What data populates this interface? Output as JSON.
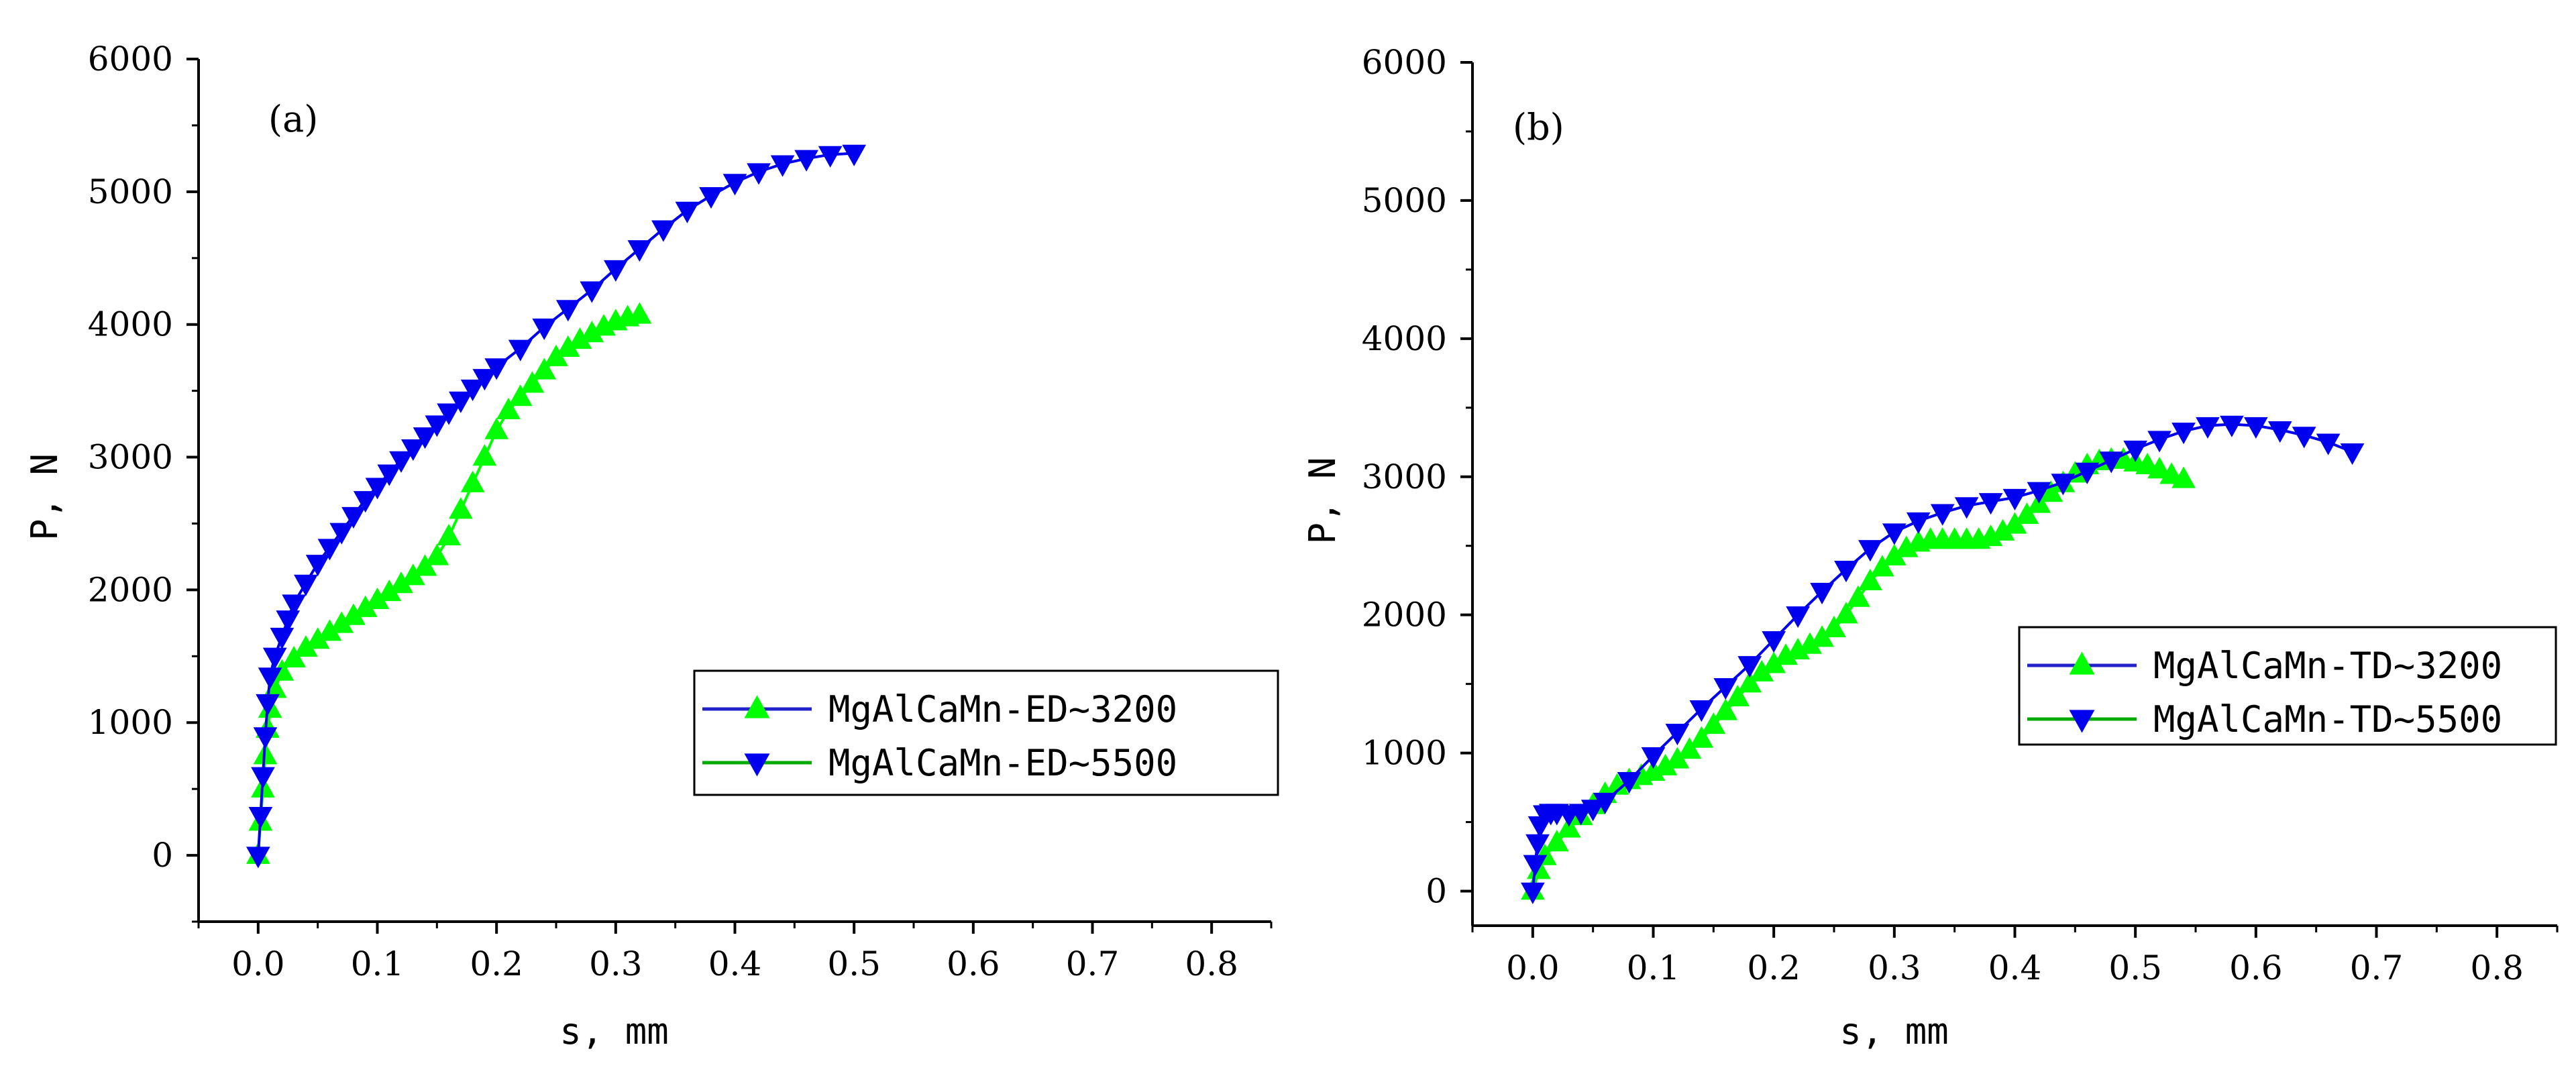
{
  "chart_data": [
    {
      "type": "line",
      "panel_label": "(a)",
      "xlabel": "s,  mm",
      "ylabel": "P,  N",
      "xlim": [
        -0.05,
        0.85
      ],
      "ylim": [
        -500,
        6000
      ],
      "x_ticks": [
        "0.0",
        "0.1",
        "0.2",
        "0.3",
        "0.4",
        "0.5",
        "0.6",
        "0.7",
        "0.8"
      ],
      "y_ticks": [
        "0",
        "1000",
        "2000",
        "3000",
        "4000",
        "5000",
        "6000"
      ],
      "legend_position": "center-right",
      "series": [
        {
          "name": "MgAlCaMn-ED~3200",
          "color": "#00ff00",
          "line_color": "#2222cc",
          "marker": "triangle-up",
          "x": [
            0,
            0.002,
            0.004,
            0.006,
            0.008,
            0.01,
            0.014,
            0.02,
            0.03,
            0.04,
            0.05,
            0.06,
            0.07,
            0.08,
            0.09,
            0.1,
            0.11,
            0.12,
            0.13,
            0.14,
            0.15,
            0.16,
            0.17,
            0.18,
            0.19,
            0.2,
            0.21,
            0.22,
            0.23,
            0.24,
            0.25,
            0.26,
            0.27,
            0.28,
            0.29,
            0.3,
            0.31,
            0.32
          ],
          "y": [
            0,
            250,
            500,
            750,
            950,
            1100,
            1250,
            1380,
            1480,
            1560,
            1620,
            1680,
            1740,
            1800,
            1860,
            1920,
            1980,
            2040,
            2100,
            2170,
            2250,
            2400,
            2600,
            2800,
            3000,
            3200,
            3350,
            3450,
            3550,
            3650,
            3750,
            3820,
            3880,
            3930,
            3980,
            4020,
            4050,
            4070
          ]
        },
        {
          "name": "MgAlCaMn-ED~5500",
          "color": "#0000ee",
          "line_color": "#00aa00",
          "marker": "triangle-down",
          "x": [
            0,
            0.002,
            0.004,
            0.006,
            0.008,
            0.01,
            0.014,
            0.02,
            0.025,
            0.03,
            0.04,
            0.05,
            0.06,
            0.07,
            0.08,
            0.09,
            0.1,
            0.11,
            0.12,
            0.13,
            0.14,
            0.15,
            0.16,
            0.17,
            0.18,
            0.19,
            0.2,
            0.22,
            0.24,
            0.26,
            0.28,
            0.3,
            0.32,
            0.34,
            0.36,
            0.38,
            0.4,
            0.42,
            0.44,
            0.46,
            0.48,
            0.5
          ],
          "y": [
            0,
            300,
            600,
            900,
            1150,
            1350,
            1500,
            1650,
            1780,
            1900,
            2050,
            2200,
            2320,
            2440,
            2560,
            2680,
            2780,
            2880,
            2980,
            3070,
            3160,
            3250,
            3340,
            3430,
            3520,
            3600,
            3680,
            3820,
            3980,
            4120,
            4260,
            4420,
            4570,
            4720,
            4860,
            4970,
            5070,
            5150,
            5210,
            5250,
            5280,
            5290
          ]
        }
      ]
    },
    {
      "type": "line",
      "panel_label": "(b)",
      "xlabel": "s,  mm",
      "ylabel": "P,  N",
      "xlim": [
        -0.05,
        0.85
      ],
      "ylim": [
        -250,
        6000
      ],
      "x_ticks": [
        "0.0",
        "0.1",
        "0.2",
        "0.3",
        "0.4",
        "0.5",
        "0.6",
        "0.7",
        "0.8"
      ],
      "y_ticks": [
        "0",
        "1000",
        "2000",
        "3000",
        "4000",
        "5000",
        "6000"
      ],
      "legend_position": "center-right",
      "series": [
        {
          "name": "MgAlCaMn-TD~3200",
          "color": "#00ff00",
          "line_color": "#2222cc",
          "marker": "triangle-up",
          "x": [
            0,
            0.005,
            0.01,
            0.02,
            0.03,
            0.04,
            0.05,
            0.06,
            0.07,
            0.08,
            0.09,
            0.1,
            0.11,
            0.12,
            0.13,
            0.14,
            0.15,
            0.16,
            0.17,
            0.18,
            0.19,
            0.2,
            0.21,
            0.22,
            0.23,
            0.24,
            0.25,
            0.26,
            0.27,
            0.28,
            0.29,
            0.3,
            0.31,
            0.32,
            0.33,
            0.34,
            0.35,
            0.36,
            0.37,
            0.38,
            0.39,
            0.4,
            0.41,
            0.42,
            0.43,
            0.44,
            0.45,
            0.46,
            0.47,
            0.48,
            0.49,
            0.5,
            0.51,
            0.52,
            0.53,
            0.54
          ],
          "y": [
            0,
            150,
            250,
            350,
            450,
            540,
            620,
            700,
            760,
            800,
            830,
            860,
            900,
            950,
            1020,
            1100,
            1200,
            1300,
            1400,
            1500,
            1580,
            1640,
            1700,
            1740,
            1780,
            1830,
            1900,
            2000,
            2120,
            2240,
            2340,
            2420,
            2480,
            2520,
            2540,
            2540,
            2540,
            2540,
            2540,
            2560,
            2600,
            2650,
            2720,
            2800,
            2880,
            2950,
            3020,
            3080,
            3110,
            3120,
            3120,
            3100,
            3080,
            3050,
            3010,
            2980
          ]
        },
        {
          "name": "MgAlCaMn-TD~5500",
          "color": "#0000ee",
          "line_color": "#00aa00",
          "marker": "triangle-down",
          "x": [
            0,
            0.002,
            0.004,
            0.006,
            0.01,
            0.015,
            0.02,
            0.03,
            0.04,
            0.05,
            0.06,
            0.08,
            0.1,
            0.12,
            0.14,
            0.16,
            0.18,
            0.2,
            0.22,
            0.24,
            0.26,
            0.28,
            0.3,
            0.32,
            0.34,
            0.36,
            0.38,
            0.4,
            0.42,
            0.44,
            0.46,
            0.48,
            0.5,
            0.52,
            0.54,
            0.56,
            0.58,
            0.6,
            0.62,
            0.64,
            0.66,
            0.68
          ],
          "y": [
            0,
            200,
            350,
            480,
            560,
            570,
            570,
            560,
            570,
            600,
            650,
            800,
            980,
            1150,
            1320,
            1480,
            1640,
            1820,
            2000,
            2170,
            2330,
            2480,
            2600,
            2680,
            2740,
            2790,
            2820,
            2850,
            2900,
            2960,
            3040,
            3120,
            3200,
            3270,
            3330,
            3370,
            3380,
            3370,
            3340,
            3300,
            3250,
            3180
          ]
        }
      ]
    }
  ]
}
